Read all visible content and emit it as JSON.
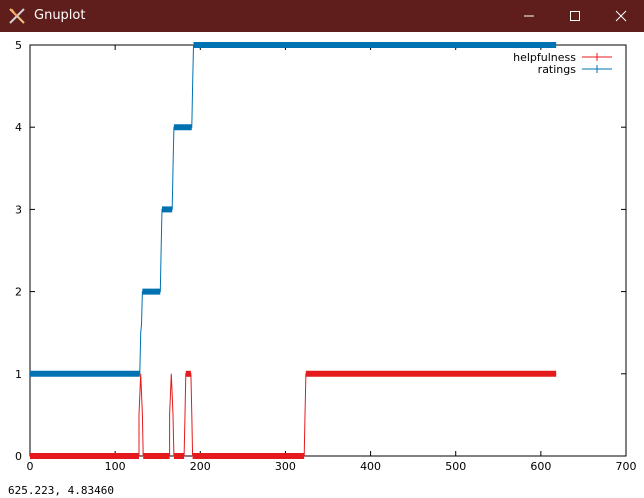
{
  "window": {
    "title": "Gnuplot",
    "icon": "gnuplot-app-icon",
    "controls": [
      "minimize-icon",
      "maximize-icon",
      "close-icon"
    ],
    "titlebar_color": "#5f1e1b"
  },
  "status_bar": {
    "coords": "625.223,  4.83460"
  },
  "chart_data": {
    "type": "line",
    "xlim": [
      0,
      700
    ],
    "ylim": [
      0,
      5
    ],
    "x_ticks": [
      0,
      100,
      200,
      300,
      400,
      500,
      600,
      700
    ],
    "y_ticks": [
      0,
      1,
      2,
      3,
      4,
      5
    ],
    "grid": false,
    "legend_placement": "top-right",
    "series": [
      {
        "name": "helpfulness",
        "color": "#e41a1c",
        "points": [
          [
            0,
            0
          ],
          [
            128,
            0
          ],
          [
            128,
            0.5
          ],
          [
            130,
            1
          ],
          [
            132,
            0.5
          ],
          [
            133,
            0
          ],
          [
            164,
            0
          ],
          [
            164,
            0.5
          ],
          [
            166,
            1
          ],
          [
            168,
            0.5
          ],
          [
            169,
            0
          ],
          [
            181,
            0
          ],
          [
            182,
            0.5
          ],
          [
            183,
            1
          ],
          [
            189,
            1
          ],
          [
            190,
            0.5
          ],
          [
            191,
            0
          ],
          [
            322,
            0
          ],
          [
            323,
            0.5
          ],
          [
            324,
            1
          ],
          [
            618,
            1
          ]
        ]
      },
      {
        "name": "ratings",
        "color": "#0072b2",
        "points": [
          [
            0,
            1
          ],
          [
            129,
            1
          ],
          [
            130,
            1.5
          ],
          [
            131,
            1.6
          ],
          [
            132,
            2
          ],
          [
            153,
            2
          ],
          [
            154,
            2.5
          ],
          [
            155,
            3
          ],
          [
            167,
            3
          ],
          [
            168,
            3.5
          ],
          [
            169,
            4
          ],
          [
            190,
            4
          ],
          [
            191,
            4.5
          ],
          [
            192,
            5
          ],
          [
            618,
            5
          ]
        ]
      }
    ]
  }
}
